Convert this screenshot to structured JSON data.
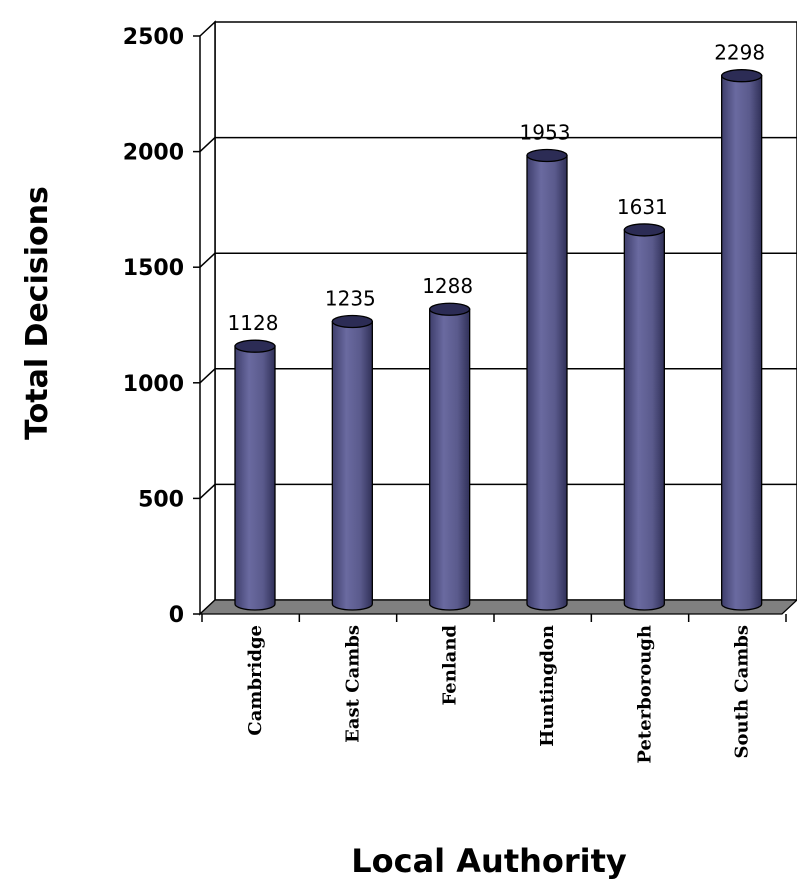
{
  "chart_data": {
    "type": "bar",
    "style": "3d-cylinder",
    "categories": [
      "Cambridge",
      "East Cambs",
      "Fenland",
      "Huntingdon",
      "Peterborough",
      "South Cambs"
    ],
    "values": [
      1128,
      1235,
      1288,
      1953,
      1631,
      2298
    ],
    "data_labels": [
      "1128",
      "1235",
      "1288",
      "1953",
      "1631",
      "2298"
    ],
    "xlabel": "Local Authority",
    "ylabel": "Total Decisions",
    "ylim": [
      0,
      2500
    ],
    "yticks": [
      0,
      500,
      1000,
      1500,
      2000,
      2500
    ],
    "ytick_labels": [
      "0",
      "500",
      "1000",
      "1500",
      "2000",
      "2500"
    ],
    "grid": true,
    "legend": "none",
    "bar_color": "#5b5b8e",
    "bar_dark_color": "#2c2c55"
  }
}
